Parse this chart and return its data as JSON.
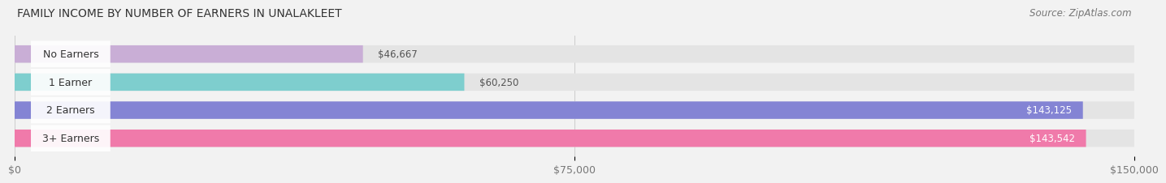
{
  "title": "FAMILY INCOME BY NUMBER OF EARNERS IN UNALAKLEET",
  "source": "Source: ZipAtlas.com",
  "categories": [
    "No Earners",
    "1 Earner",
    "2 Earners",
    "3+ Earners"
  ],
  "values": [
    46667,
    60250,
    143125,
    143542
  ],
  "bar_colors": [
    "#c9aed6",
    "#7ecece",
    "#8484d4",
    "#f07aaa"
  ],
  "value_labels": [
    "$46,667",
    "$60,250",
    "$143,125",
    "$143,542"
  ],
  "xlim": [
    0,
    150000
  ],
  "xticks": [
    0,
    75000,
    150000
  ],
  "xticklabels": [
    "$0",
    "$75,000",
    "$150,000"
  ],
  "background_color": "#f2f2f2",
  "bar_background_color": "#e4e4e4",
  "title_fontsize": 10,
  "source_fontsize": 8.5,
  "label_fontsize": 9,
  "value_fontsize": 8.5,
  "tick_fontsize": 9
}
